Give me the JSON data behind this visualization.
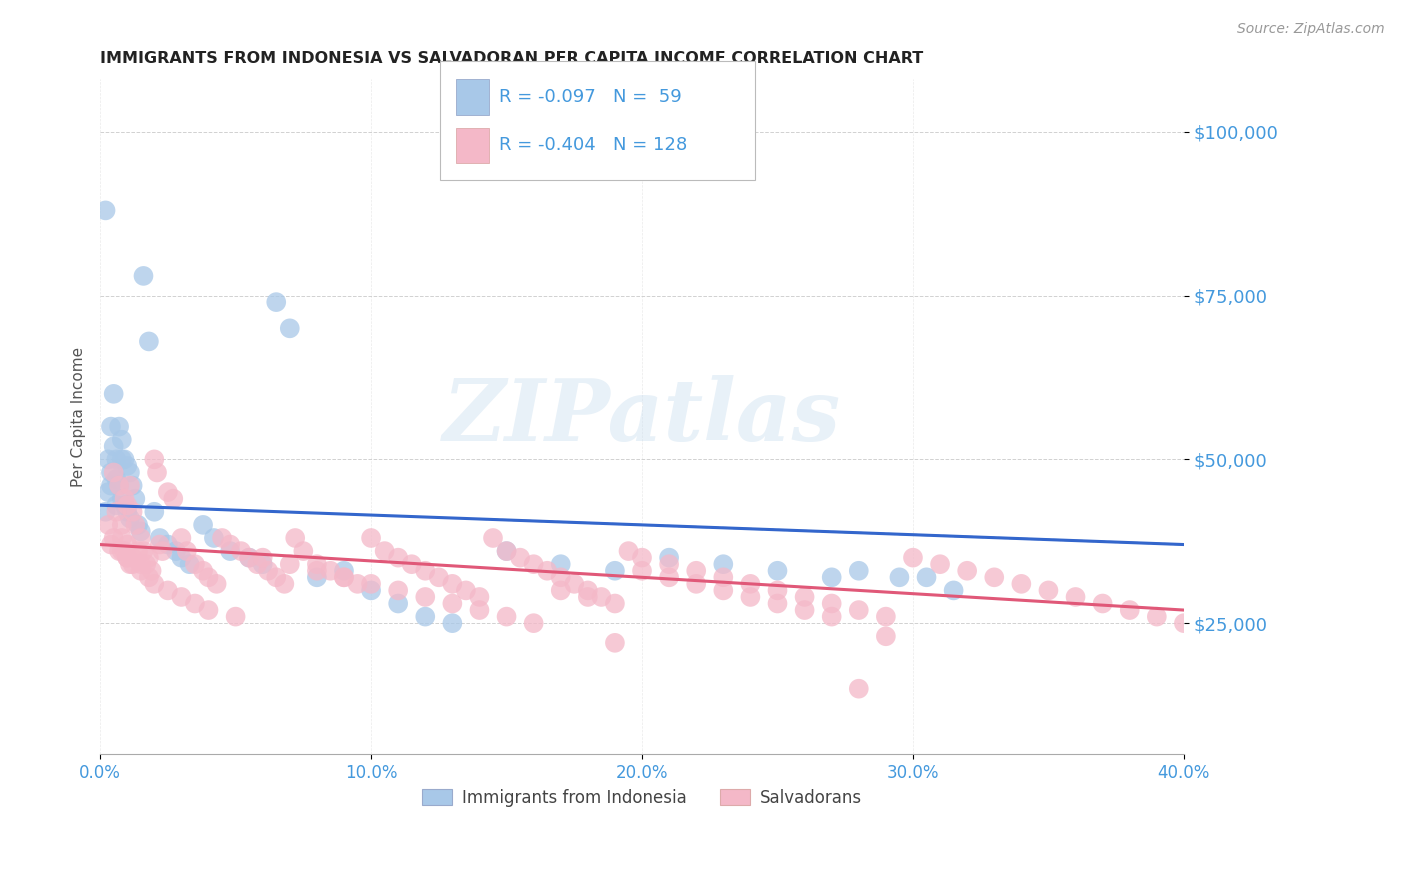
{
  "title": "IMMIGRANTS FROM INDONESIA VS SALVADORAN PER CAPITA INCOME CORRELATION CHART",
  "source": "Source: ZipAtlas.com",
  "ylabel": "Per Capita Income",
  "ytick_labels": [
    "$25,000",
    "$50,000",
    "$75,000",
    "$100,000"
  ],
  "ytick_values": [
    25000,
    50000,
    75000,
    100000
  ],
  "xmin": 0.0,
  "xmax": 0.4,
  "ymin": 5000,
  "ymax": 108000,
  "legend_r_indonesia": "-0.097",
  "legend_n_indonesia": "59",
  "legend_r_salvadoran": "-0.404",
  "legend_n_salvadoran": "128",
  "color_indonesia": "#a8c8e8",
  "color_salvadoran": "#f4b8c8",
  "color_line_indonesia": "#3366cc",
  "color_line_salvadoran": "#e05878",
  "color_axis_labels": "#4499dd",
  "watermark": "ZIPatlas"
}
